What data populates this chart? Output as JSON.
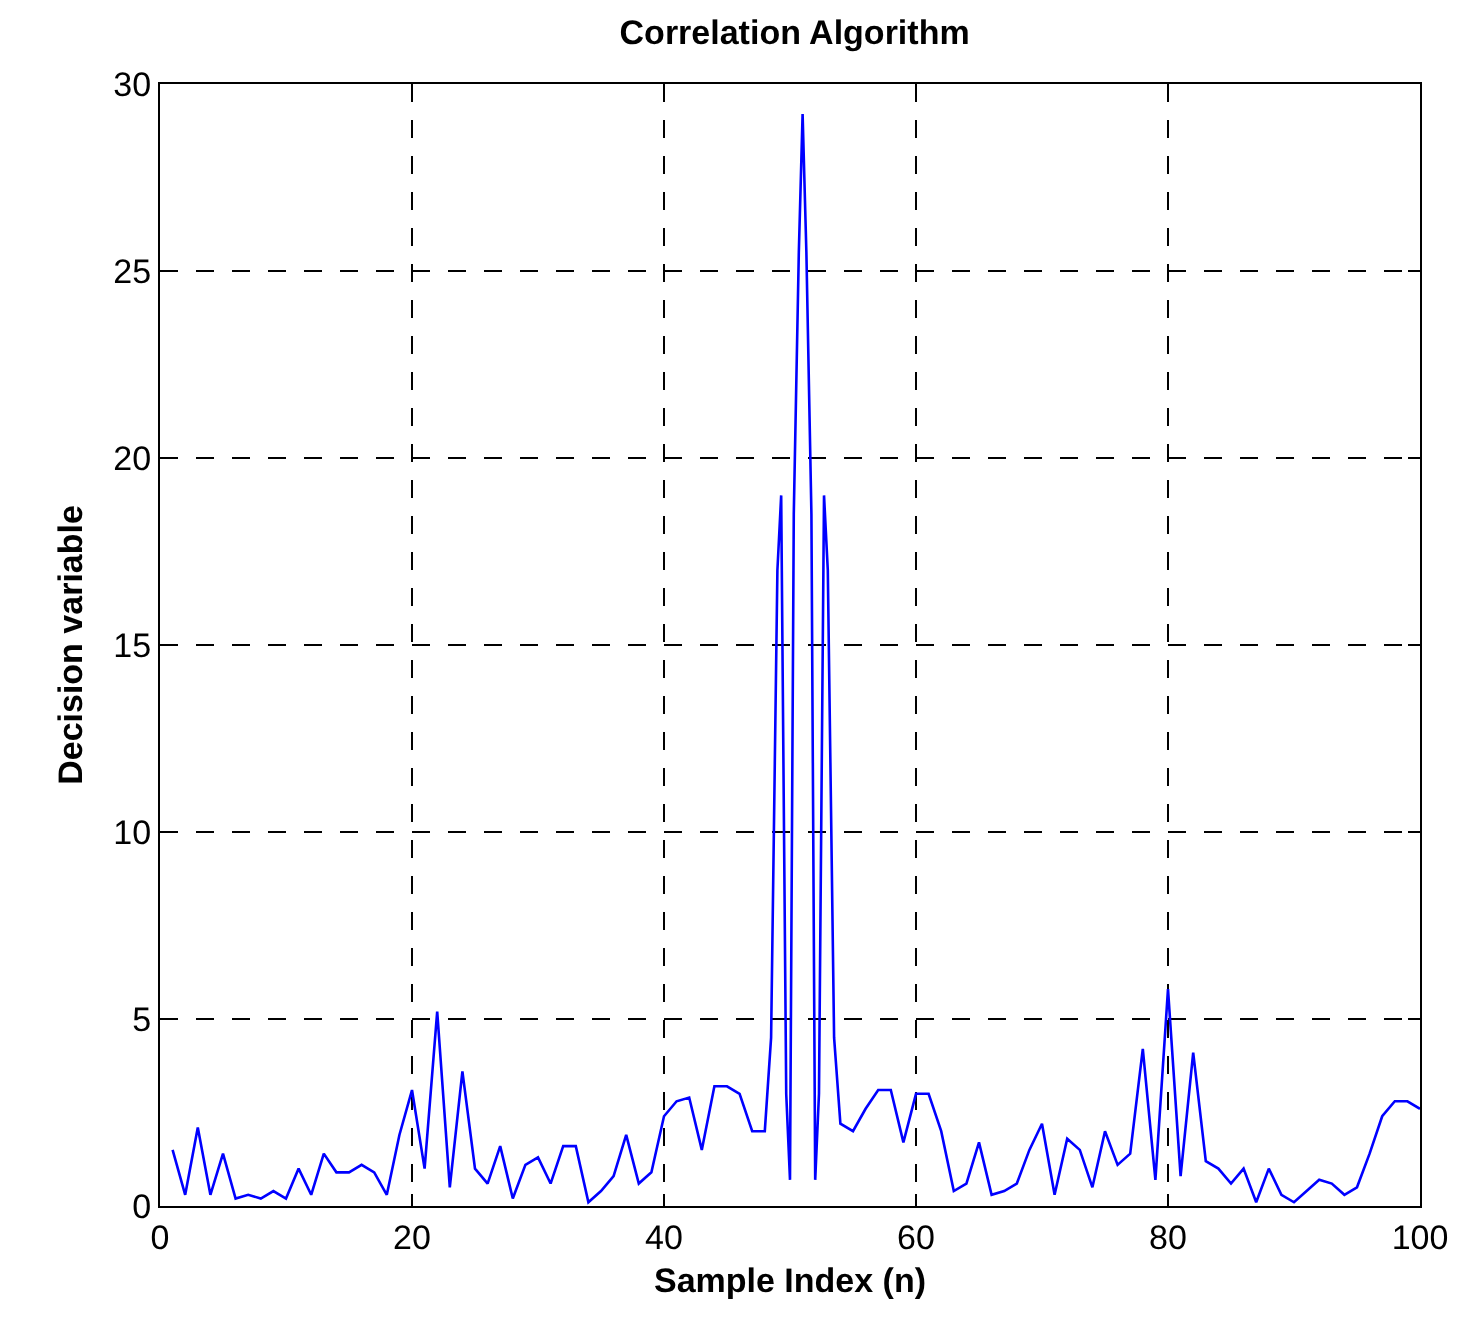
{
  "chart_data": {
    "type": "line",
    "title": "Correlation Algorithm",
    "xlabel": "Sample Index (n)",
    "ylabel": "Decision variable",
    "x": [
      1,
      2,
      3,
      4,
      5,
      6,
      7,
      8,
      9,
      10,
      11,
      12,
      13,
      14,
      15,
      16,
      17,
      18,
      19,
      20,
      21,
      22,
      23,
      24,
      25,
      26,
      27,
      28,
      29,
      30,
      31,
      32,
      33,
      34,
      35,
      36,
      37,
      38,
      39,
      40,
      41,
      42,
      43,
      44,
      45,
      46,
      47,
      48,
      48.5,
      49,
      49.3,
      49.7,
      50,
      50.3,
      50.7,
      51,
      51.3,
      51.7,
      52,
      52.3,
      52.7,
      53,
      53.5,
      54,
      55,
      56,
      57,
      58,
      59,
      60,
      61,
      62,
      63,
      64,
      65,
      66,
      67,
      68,
      69,
      70,
      71,
      72,
      73,
      74,
      75,
      76,
      77,
      78,
      79,
      80,
      81,
      82,
      83,
      84,
      85,
      86,
      87,
      88,
      89,
      90,
      91,
      92,
      93,
      94,
      95,
      96,
      97,
      98,
      99,
      100
    ],
    "series": [
      {
        "color": "#0000ff",
        "values": [
          1.5,
          0.3,
          2.1,
          0.3,
          1.4,
          0.2,
          0.3,
          0.2,
          0.4,
          0.2,
          1.0,
          0.3,
          1.4,
          0.9,
          0.9,
          1.1,
          0.9,
          0.3,
          1.9,
          3.1,
          1.0,
          5.2,
          0.5,
          3.6,
          1.0,
          0.6,
          1.6,
          0.2,
          1.1,
          1.3,
          0.6,
          1.6,
          1.6,
          0.1,
          0.4,
          0.8,
          1.9,
          0.6,
          0.9,
          2.4,
          2.8,
          2.9,
          1.5,
          3.2,
          3.2,
          3.0,
          2.0,
          2.0,
          4.5,
          17,
          19,
          3,
          0.7,
          18.5,
          25.5,
          29.2,
          25.5,
          18.5,
          0.7,
          3,
          19,
          17,
          4.5,
          2.2,
          2.0,
          2.6,
          3.1,
          3.1,
          1.7,
          3.0,
          3.0,
          2.0,
          0.4,
          0.6,
          1.7,
          0.3,
          0.4,
          0.6,
          1.5,
          2.2,
          0.3,
          1.8,
          1.5,
          0.5,
          2.0,
          1.1,
          1.4,
          4.2,
          0.7,
          5.8,
          0.8,
          4.1,
          1.2,
          1.0,
          0.6,
          1.0,
          0.1,
          1.0,
          0.3,
          0.1,
          0.4,
          0.7,
          0.6,
          0.3,
          0.5,
          1.4,
          2.4,
          2.8,
          2.8,
          2.6
        ]
      }
    ],
    "xlim": [
      0,
      100
    ],
    "xticks": [
      0,
      20,
      40,
      60,
      80,
      100
    ],
    "ylim": [
      0,
      30
    ],
    "yticks": [
      0,
      5,
      10,
      15,
      20,
      25,
      30
    ],
    "grid": true,
    "marker": "none",
    "line_style": "solid"
  }
}
